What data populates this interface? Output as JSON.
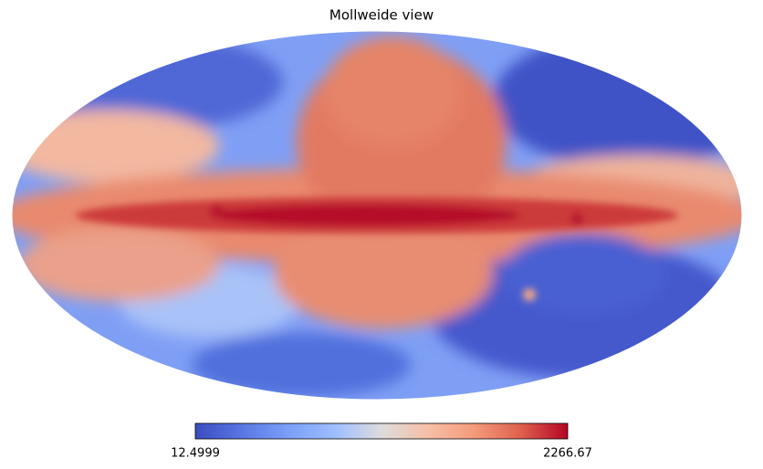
{
  "map": {
    "title": "Mollweide view",
    "colorbar": {
      "min": 12.4999,
      "max": 2266.67
    }
  }
}
